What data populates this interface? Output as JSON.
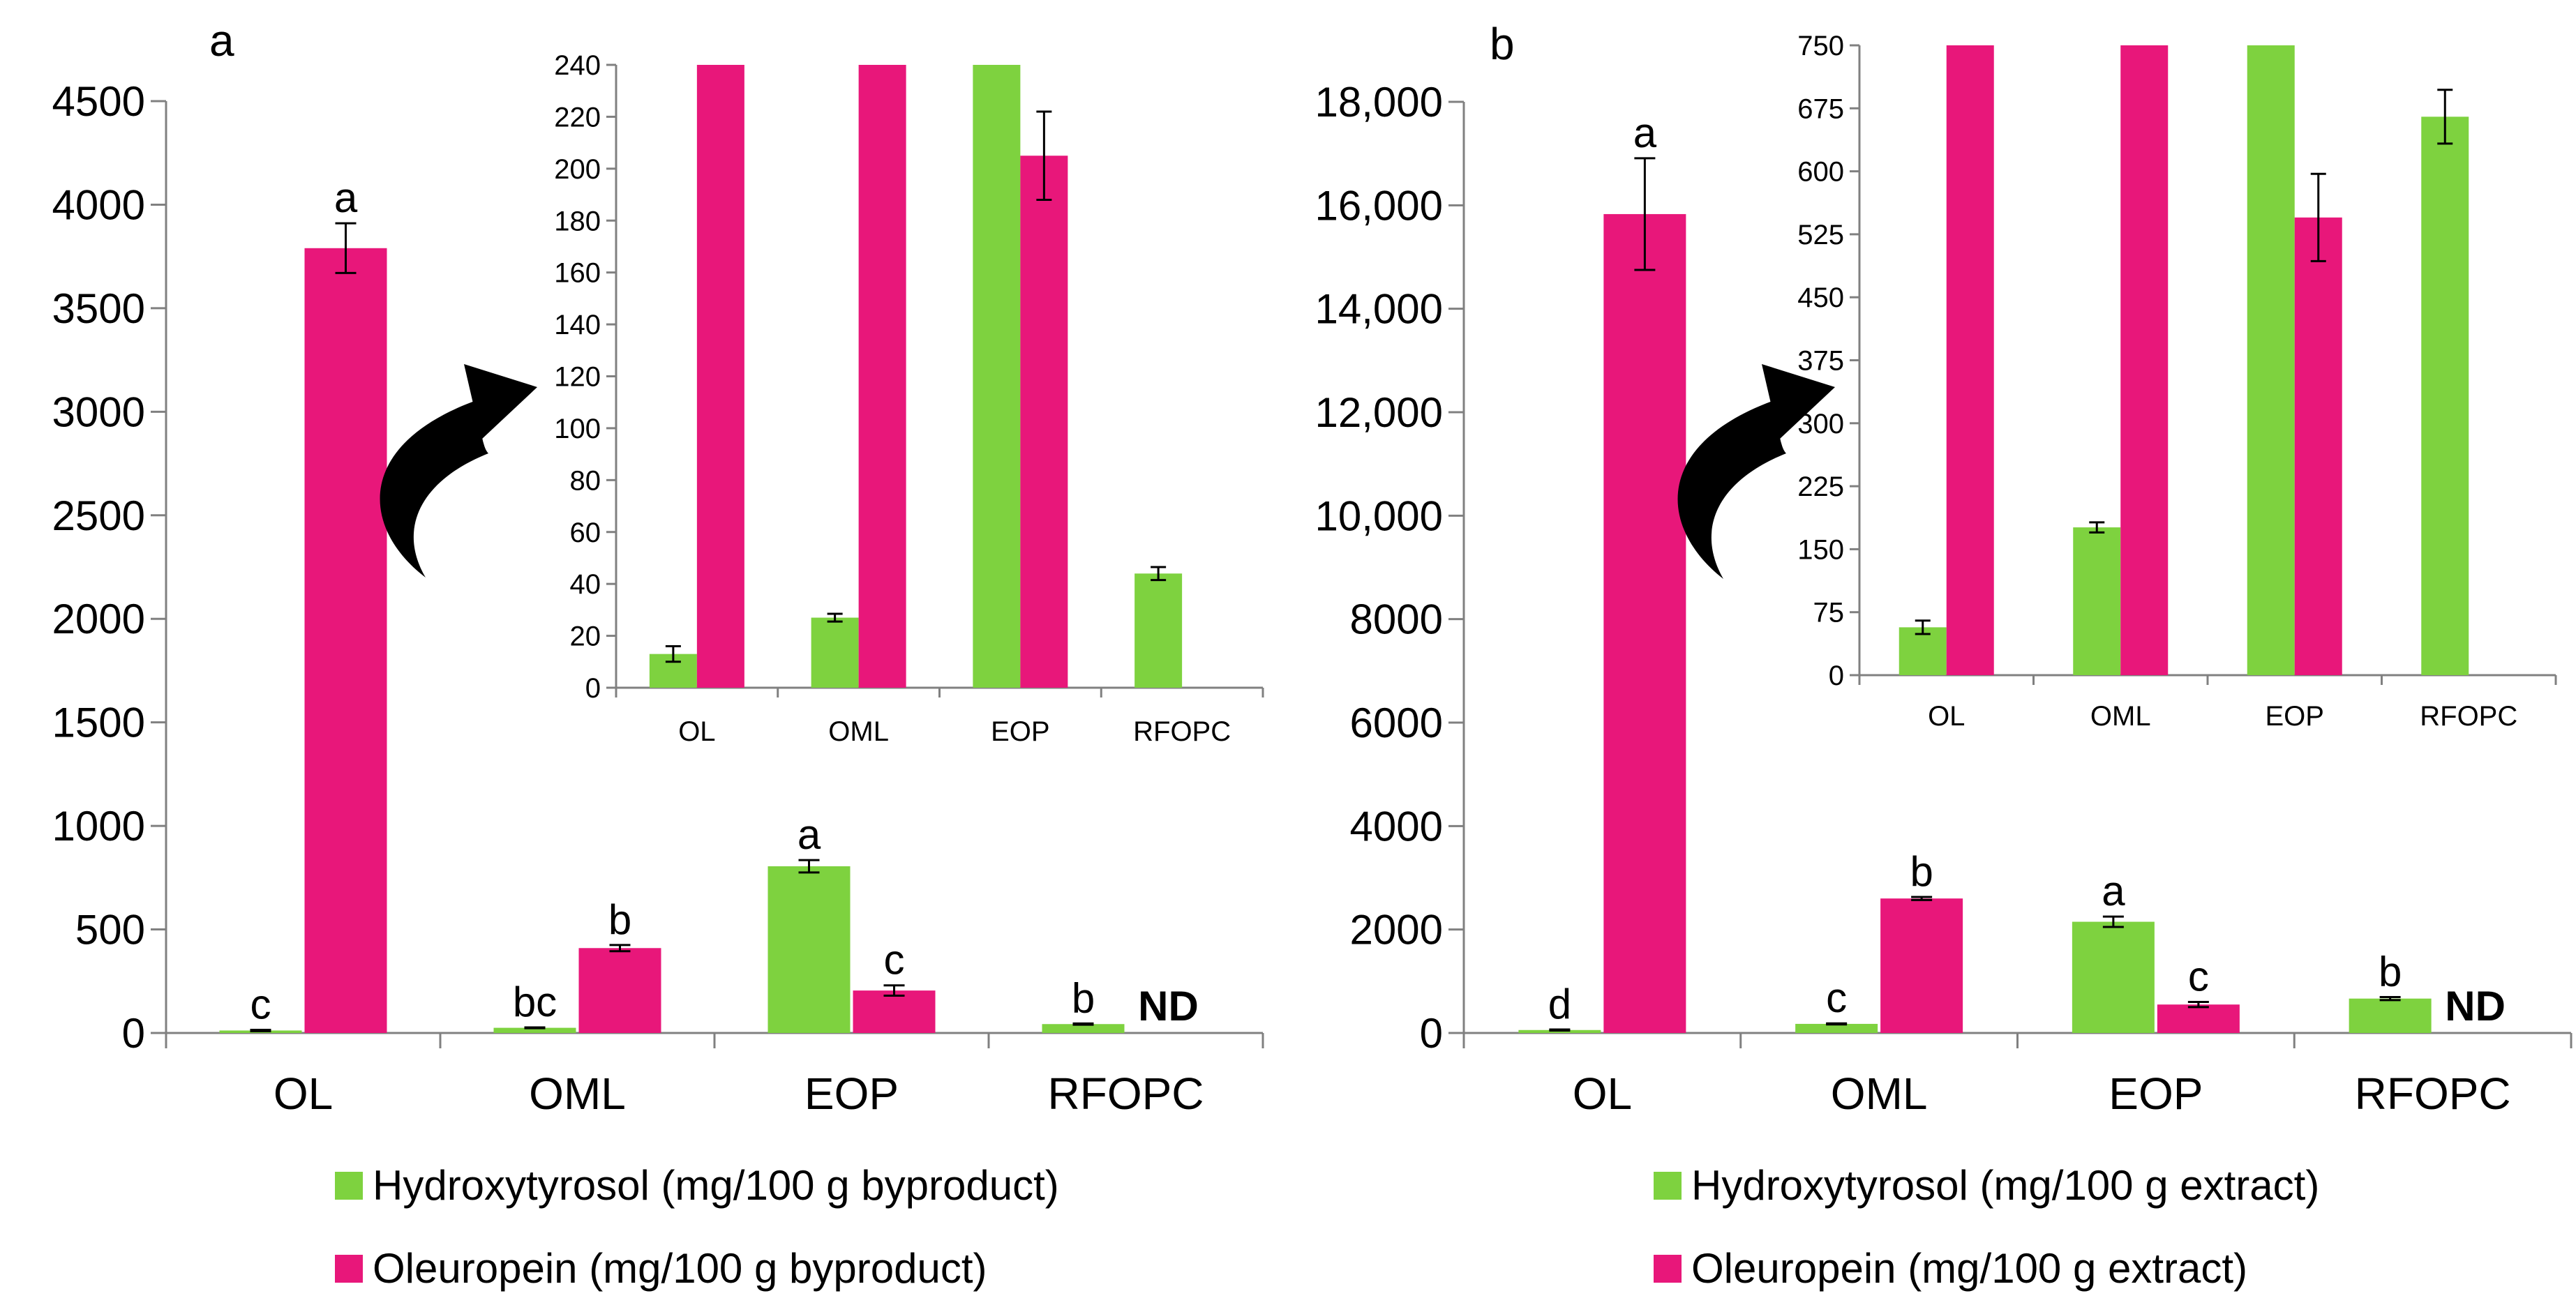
{
  "colors": {
    "hydroxytyrosol": "#7ED23F",
    "oleuropein": "#E8177A",
    "axis": "#808080",
    "error": "#000000",
    "arrow": "#000000"
  },
  "chart_data": [
    {
      "id": "main-a",
      "type": "bar",
      "panel_label": "a",
      "categories": [
        "OL",
        "OML",
        "EOP",
        "RFOPC"
      ],
      "ylim": [
        0,
        4500
      ],
      "yticks": [
        0,
        500,
        1000,
        1500,
        2000,
        2500,
        3000,
        3500,
        4000,
        4500
      ],
      "ytick_labels": [
        "0",
        "500",
        "1000",
        "1500",
        "2000",
        "2500",
        "3000",
        "3500",
        "4000",
        "4500"
      ],
      "series": [
        {
          "name": "Hydroxytyrosol (mg/100 g byproduct)",
          "key": "hydroxytyrosol",
          "values": [
            12,
            25,
            805,
            43
          ],
          "errors": [
            3,
            2,
            30,
            3
          ],
          "sig": [
            "c",
            "bc",
            "a",
            "b"
          ]
        },
        {
          "name": "Oleuropein (mg/100 g byproduct)",
          "key": "oleuropein",
          "values": [
            3790,
            410,
            205,
            null
          ],
          "errors": [
            120,
            15,
            25,
            null
          ],
          "sig": [
            "a",
            "b",
            "c",
            ""
          ]
        }
      ],
      "annotations": [
        {
          "text": "ND",
          "category": "RFOPC",
          "series": "oleuropein"
        }
      ]
    },
    {
      "id": "inset-a",
      "type": "bar",
      "categories": [
        "OL",
        "OML",
        "EOP",
        "RFOPC"
      ],
      "ylim": [
        0,
        240
      ],
      "yticks": [
        0,
        20,
        40,
        60,
        80,
        100,
        120,
        140,
        160,
        180,
        200,
        220,
        240
      ],
      "ytick_labels": [
        "0",
        "20",
        "40",
        "60",
        "80",
        "100",
        "120",
        "140",
        "160",
        "180",
        "200",
        "220",
        "240"
      ],
      "series": [
        {
          "name": "Hydroxytyrosol",
          "key": "hydroxytyrosol",
          "values": [
            13,
            27,
            240,
            44
          ],
          "errors": [
            3,
            1.5,
            null,
            2.5
          ]
        },
        {
          "name": "Oleuropein",
          "key": "oleuropein",
          "values": [
            240,
            240,
            205,
            null
          ],
          "errors": [
            null,
            null,
            17,
            null
          ]
        }
      ]
    },
    {
      "id": "main-b",
      "type": "bar",
      "panel_label": "b",
      "categories": [
        "OL",
        "OML",
        "EOP",
        "RFOPC"
      ],
      "ylim": [
        0,
        18000
      ],
      "yticks": [
        0,
        2000,
        4000,
        6000,
        8000,
        10000,
        12000,
        14000,
        16000,
        18000
      ],
      "ytick_labels": [
        "0",
        "2000",
        "4000",
        "6000",
        "8000",
        "10,000",
        "12,000",
        "14,000",
        "16,000",
        "18,000"
      ],
      "series": [
        {
          "name": "Hydroxytyrosol (mg/100 g extract)",
          "key": "hydroxytyrosol",
          "values": [
            57,
            176,
            2150,
            665
          ],
          "errors": [
            10,
            10,
            100,
            30
          ],
          "sig": [
            "d",
            "c",
            "a",
            "b"
          ]
        },
        {
          "name": "Oleuropein (mg/100 g extract)",
          "key": "oleuropein",
          "values": [
            15830,
            2600,
            550,
            null
          ],
          "errors": [
            1080,
            30,
            50,
            null
          ],
          "sig": [
            "a",
            "b",
            "c",
            ""
          ]
        }
      ],
      "annotations": [
        {
          "text": "ND",
          "category": "RFOPC",
          "series": "oleuropein"
        }
      ]
    },
    {
      "id": "inset-b",
      "type": "bar",
      "categories": [
        "OL",
        "OML",
        "EOP",
        "RFOPC"
      ],
      "ylim": [
        0,
        750
      ],
      "yticks": [
        0,
        75,
        150,
        225,
        300,
        375,
        450,
        525,
        600,
        675,
        750
      ],
      "ytick_labels": [
        "0",
        "75",
        "150",
        "225",
        "300",
        "375",
        "450",
        "525",
        "600",
        "675",
        "750"
      ],
      "series": [
        {
          "name": "Hydroxytyrosol",
          "key": "hydroxytyrosol",
          "values": [
            57,
            176,
            750,
            665
          ],
          "errors": [
            8,
            6,
            null,
            32
          ]
        },
        {
          "name": "Oleuropein",
          "key": "oleuropein",
          "values": [
            750,
            750,
            545,
            null
          ],
          "errors": [
            null,
            null,
            52,
            null
          ]
        }
      ]
    }
  ],
  "legends": {
    "a": [
      {
        "key": "hydroxytyrosol",
        "label": "Hydroxytyrosol (mg/100 g byproduct)"
      },
      {
        "key": "oleuropein",
        "label": "Oleuropein  (mg/100 g byproduct)"
      }
    ],
    "b": [
      {
        "key": "hydroxytyrosol",
        "label": "Hydroxytyrosol (mg/100 g extract)"
      },
      {
        "key": "oleuropein",
        "label": "Oleuropein  (mg/100 g extract)"
      }
    ]
  }
}
